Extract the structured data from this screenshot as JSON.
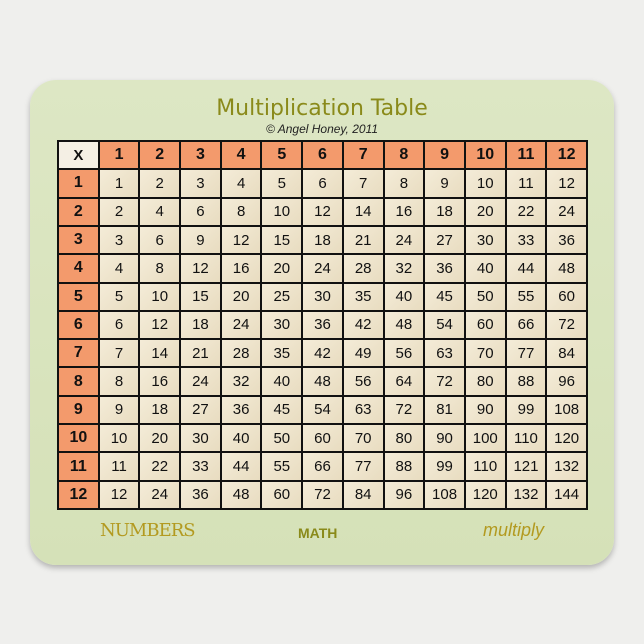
{
  "title": "Multiplication Table",
  "copyright": "© Angel Honey, 2011",
  "table": {
    "header": [
      "X",
      "1",
      "2",
      "3",
      "4",
      "5",
      "6",
      "7",
      "8",
      "9",
      "10",
      "11",
      "12"
    ],
    "rows": [
      [
        "1",
        "1",
        "2",
        "3",
        "4",
        "5",
        "6",
        "7",
        "8",
        "9",
        "10",
        "11",
        "12"
      ],
      [
        "2",
        "2",
        "4",
        "6",
        "8",
        "10",
        "12",
        "14",
        "16",
        "18",
        "20",
        "22",
        "24"
      ],
      [
        "3",
        "3",
        "6",
        "9",
        "12",
        "15",
        "18",
        "21",
        "24",
        "27",
        "30",
        "33",
        "36"
      ],
      [
        "4",
        "4",
        "8",
        "12",
        "16",
        "20",
        "24",
        "28",
        "32",
        "36",
        "40",
        "44",
        "48"
      ],
      [
        "5",
        "5",
        "10",
        "15",
        "20",
        "25",
        "30",
        "35",
        "40",
        "45",
        "50",
        "55",
        "60"
      ],
      [
        "6",
        "6",
        "12",
        "18",
        "24",
        "30",
        "36",
        "42",
        "48",
        "54",
        "60",
        "66",
        "72"
      ],
      [
        "7",
        "7",
        "14",
        "21",
        "28",
        "35",
        "42",
        "49",
        "56",
        "63",
        "70",
        "77",
        "84"
      ],
      [
        "8",
        "8",
        "16",
        "24",
        "32",
        "40",
        "48",
        "56",
        "64",
        "72",
        "80",
        "88",
        "96"
      ],
      [
        "9",
        "9",
        "18",
        "27",
        "36",
        "45",
        "54",
        "63",
        "72",
        "81",
        "90",
        "99",
        "108"
      ],
      [
        "10",
        "10",
        "20",
        "30",
        "40",
        "50",
        "60",
        "70",
        "80",
        "90",
        "100",
        "110",
        "120"
      ],
      [
        "11",
        "11",
        "22",
        "33",
        "44",
        "55",
        "66",
        "77",
        "88",
        "99",
        "110",
        "121",
        "132"
      ],
      [
        "12",
        "12",
        "24",
        "36",
        "48",
        "60",
        "72",
        "84",
        "96",
        "108",
        "120",
        "132",
        "144"
      ]
    ]
  },
  "footer": {
    "left": "NUMBERS",
    "center": "MATH",
    "right": "multiply"
  },
  "colors": {
    "header": "#f39a6c",
    "pad": "#d9e4bf",
    "title": "#8a8a1a"
  }
}
